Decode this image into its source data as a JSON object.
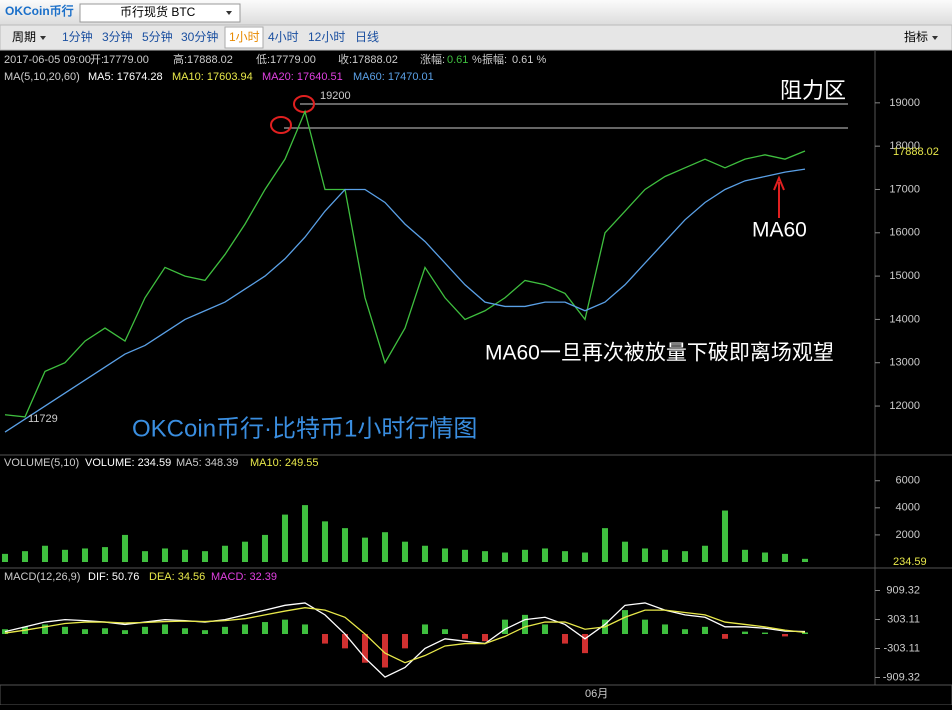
{
  "toolbar": {
    "logo": "OKCoin币行",
    "market": "币行现货 BTC",
    "period": "周期",
    "intervals": [
      "1分钟",
      "3分钟",
      "5分钟",
      "30分钟",
      "1小时",
      "4小时",
      "12小时",
      "日线"
    ],
    "indicator": "指标"
  },
  "price_info": [
    "2017-06-05 09:00",
    "开:",
    "17779.00",
    "高:",
    "17888.02",
    "低:",
    "17779.00",
    "收:",
    "17888.02",
    "涨幅:",
    "0.61",
    "%",
    "振幅:",
    "0.61 %"
  ],
  "ma_info": [
    "MA(5,10,20,60)",
    "MA5: 17674.28",
    "MA10: 17603.94",
    "MA20: 17640.51",
    "MA60: 17470.01"
  ],
  "volume_info": [
    "VOLUME(5,10)",
    "VOLUME: 234.59",
    "MA5: 348.39",
    "MA10: 249.55"
  ],
  "macd_info": [
    "MACD(12,26,9)",
    "DIF: 50.76",
    "DEA: 34.56",
    "MACD: 32.39"
  ],
  "chart_data": [
    {
      "type": "line",
      "ylim": [
        10870,
        20220
      ],
      "yticks": [
        12000,
        13000,
        14000,
        15000,
        16000,
        17000,
        18000,
        19000
      ],
      "series": [
        {
          "name": "close",
          "color": "#3fbf3f",
          "values": [
            11800,
            11750,
            12800,
            13000,
            13500,
            13800,
            13500,
            14500,
            15200,
            15000,
            14900,
            15500,
            16200,
            17000,
            17700,
            18800,
            17000,
            17000,
            14500,
            13000,
            13800,
            15200,
            14500,
            14000,
            14200,
            14500,
            14900,
            14800,
            14600,
            14000,
            16000,
            16500,
            17000,
            17300,
            17500,
            17700,
            17500,
            17700,
            17800,
            17700,
            17888.02
          ]
        },
        {
          "name": "MA60",
          "color": "#5aa0e6",
          "values": [
            11400,
            11700,
            12000,
            12300,
            12600,
            12900,
            13200,
            13400,
            13700,
            14000,
            14200,
            14400,
            14700,
            15000,
            15400,
            15900,
            16500,
            17000,
            17000,
            16700,
            16200,
            15800,
            15300,
            14800,
            14400,
            14300,
            14300,
            14400,
            14400,
            14200,
            14400,
            14800,
            15300,
            15800,
            16300,
            16700,
            17000,
            17200,
            17300,
            17400,
            17470.01
          ]
        }
      ],
      "annotations": [
        "阻力区",
        "19200",
        "11729",
        "MA60",
        "MA60一旦再次被放量下破即离场观望",
        "OKCoin币行·比特币1小时行情图",
        "17888.02"
      ]
    },
    {
      "type": "bar",
      "ylim": [
        0,
        7900
      ],
      "yticks": [
        2000,
        4000,
        6000
      ],
      "color": "#3fbf3f",
      "values": [
        600,
        800,
        1200,
        900,
        1000,
        1100,
        2000,
        800,
        1000,
        900,
        800,
        1200,
        1500,
        2000,
        3500,
        4200,
        3000,
        2500,
        1800,
        2200,
        1500,
        1200,
        1000,
        900,
        800,
        700,
        900,
        1000,
        800,
        700,
        2500,
        1500,
        1000,
        900,
        800,
        1200,
        3800,
        900,
        700,
        600,
        234.59
      ],
      "annotations": [
        "234.59"
      ]
    },
    {
      "type": "macd",
      "ylim": [
        -1066,
        1380
      ],
      "yticks": [
        -909.32,
        -303.11,
        303.11,
        909.32
      ],
      "color": "#3fbf3f",
      "negative_color": "#d03030",
      "categories": [
        null,
        null,
        null,
        null,
        null,
        null,
        null,
        null,
        null,
        null,
        null,
        null,
        null,
        null,
        null,
        null,
        null,
        null,
        null,
        null,
        null,
        null,
        null,
        null,
        null,
        null,
        null,
        null,
        null,
        "06月",
        null,
        null,
        null,
        null,
        null,
        null,
        null,
        null,
        null,
        null,
        null
      ],
      "values": [
        100,
        150,
        200,
        150,
        100,
        120,
        80,
        150,
        200,
        120,
        80,
        150,
        200,
        250,
        300,
        200,
        -200,
        -300,
        -600,
        -700,
        -300,
        200,
        100,
        -100,
        -150,
        300,
        400,
        200,
        -200,
        -400,
        300,
        500,
        300,
        200,
        100,
        150,
        -100,
        50,
        30,
        -50,
        32.39
      ],
      "series": [
        {
          "name": "DIF",
          "color": "#ffffff",
          "values": [
            50,
            150,
            250,
            300,
            280,
            250,
            200,
            250,
            300,
            280,
            250,
            300,
            400,
            500,
            600,
            650,
            400,
            0,
            -500,
            -900,
            -700,
            -300,
            -100,
            -150,
            -200,
            100,
            300,
            350,
            200,
            -100,
            200,
            600,
            650,
            500,
            400,
            350,
            150,
            150,
            120,
            60,
            50.76
          ]
        },
        {
          "name": "DEA",
          "color": "#e8e84a",
          "values": [
            20,
            80,
            150,
            220,
            250,
            250,
            230,
            240,
            260,
            270,
            260,
            280,
            320,
            400,
            480,
            550,
            500,
            350,
            0,
            -400,
            -600,
            -450,
            -250,
            -200,
            -200,
            -50,
            150,
            250,
            250,
            100,
            150,
            350,
            500,
            500,
            450,
            400,
            250,
            200,
            150,
            80,
            34.56
          ]
        }
      ]
    }
  ]
}
